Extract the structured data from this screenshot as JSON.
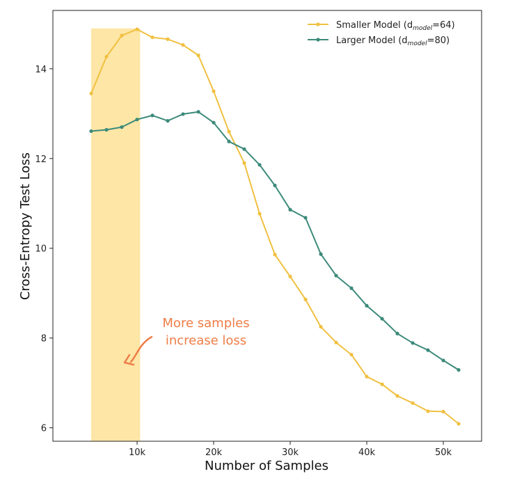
{
  "chart_data": {
    "type": "line",
    "xlabel": "Number of Samples",
    "ylabel": "Cross-Entropy Test Loss",
    "xlim": [
      -1000,
      55000
    ],
    "ylim": [
      5.7,
      15.3
    ],
    "x_ticks": [
      {
        "value": 10000,
        "label": "10k"
      },
      {
        "value": 20000,
        "label": "20k"
      },
      {
        "value": 30000,
        "label": "30k"
      },
      {
        "value": 40000,
        "label": "40k"
      },
      {
        "value": 50000,
        "label": "50k"
      }
    ],
    "y_ticks": [
      {
        "value": 6,
        "label": "6"
      },
      {
        "value": 8,
        "label": "8"
      },
      {
        "value": 10,
        "label": "10"
      },
      {
        "value": 12,
        "label": "12"
      },
      {
        "value": 14,
        "label": "14"
      }
    ],
    "grid": false,
    "legend_position": "top-right",
    "highlight_region": {
      "x_start": 4000,
      "x_end": 10400,
      "y_start": 5.7,
      "y_end": 14.9,
      "color": "#fde6a6"
    },
    "annotation": {
      "lines": [
        "More samples",
        "increase loss"
      ],
      "color": "#ef7d47",
      "points_to_x": 10400
    },
    "series": [
      {
        "name": "Smaller Model (d",
        "subscript": "model",
        "suffix": "=64)",
        "color": "#f0c040",
        "x": [
          4000,
          6000,
          8000,
          10000,
          12000,
          14000,
          16000,
          18000,
          20000,
          22000,
          24000,
          26000,
          28000,
          30000,
          32000,
          34000,
          36000,
          38000,
          40000,
          42000,
          44000,
          46000,
          48000,
          50000,
          52000
        ],
        "values": [
          13.45,
          14.27,
          14.74,
          14.88,
          14.7,
          14.66,
          14.53,
          14.3,
          13.5,
          12.6,
          11.9,
          10.77,
          9.86,
          9.37,
          8.86,
          8.25,
          7.9,
          7.63,
          7.14,
          6.97,
          6.71,
          6.55,
          6.37,
          6.36,
          6.09
        ]
      },
      {
        "name": "Larger  Model (d",
        "subscript": "model",
        "suffix": "=80)",
        "color": "#3c8a7a",
        "x": [
          4000,
          6000,
          8000,
          10000,
          12000,
          14000,
          16000,
          18000,
          20000,
          22000,
          24000,
          26000,
          28000,
          30000,
          32000,
          34000,
          36000,
          38000,
          40000,
          42000,
          44000,
          46000,
          48000,
          50000,
          52000
        ],
        "values": [
          12.61,
          12.64,
          12.7,
          12.87,
          12.96,
          12.84,
          12.99,
          13.04,
          12.8,
          12.38,
          12.21,
          11.86,
          11.4,
          10.86,
          10.68,
          9.87,
          9.39,
          9.11,
          8.72,
          8.43,
          8.1,
          7.89,
          7.73,
          7.5,
          7.29
        ]
      }
    ]
  }
}
